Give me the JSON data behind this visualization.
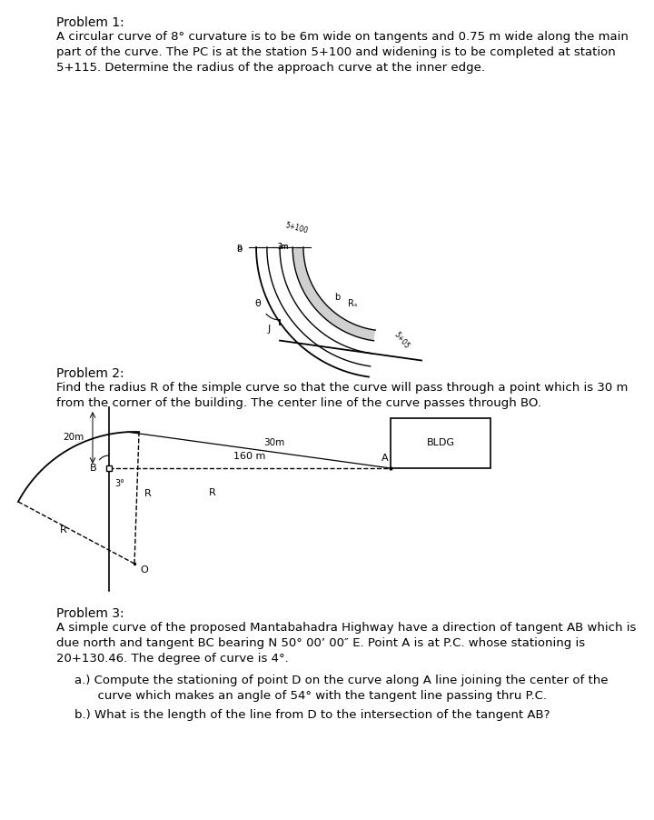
{
  "bg_color": "#ffffff",
  "fig_width": 7.2,
  "fig_height": 9.02,
  "p1_title": "Problem 1:",
  "p1_text": "A circular curve of 8° curvature is to be 6m wide on tangents and 0.75 m wide along the main\npart of the curve. The PC is at the station 5+100 and widening is to be completed at station\n5+115. Determine the radius of the approach curve at the inner edge.",
  "p2_title": "Problem 2:",
  "p2_text": "Find the radius R of the simple curve so that the curve will pass through a point which is 30 m\nfrom the corner of the building. The center line of the curve passes through BO.",
  "p3_title": "Problem 3:",
  "p3_text": "A simple curve of the proposed Mantabahadra Highway have a direction of tangent AB which is\ndue north and tangent BC bearing N 50° 00’ 00″ E. Point A is at P.C. whose stationing is\n20+130.46. The degree of curve is 4°.",
  "p3_a": "a.) Compute the stationing of point D on the curve along A line joining the center of the\n      curve which makes an angle of 54° with the tangent line passing thru P.C.",
  "p3_b": "b.) What is the length of the line from D to the intersection of the tangent AB?",
  "lc": "#000000",
  "title_fontsize": 10,
  "body_fontsize": 9.5
}
